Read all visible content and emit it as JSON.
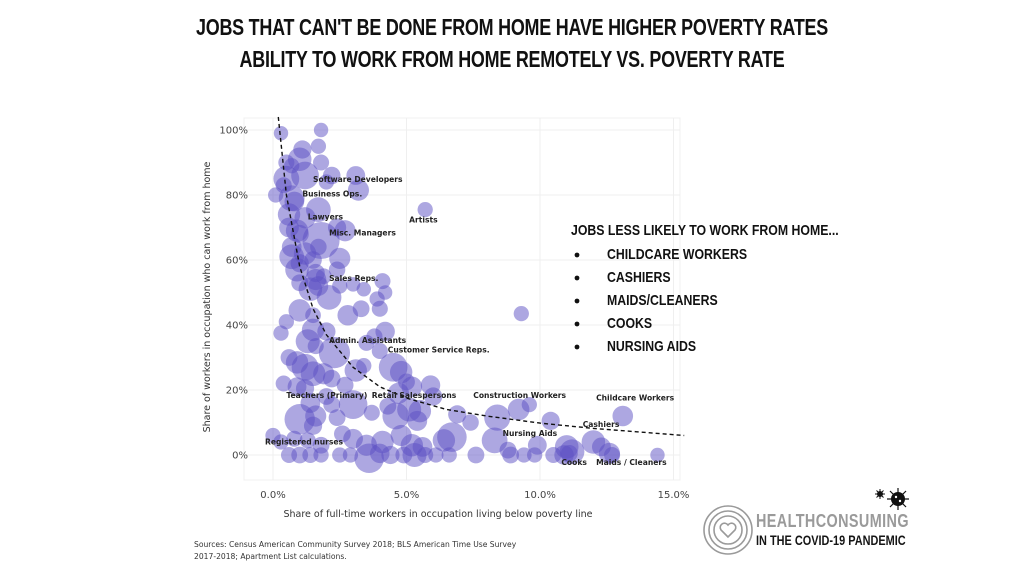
{
  "header": {
    "title": "Jobs that can't be done from home have higher poverty rates",
    "subtitle": "Ability to work from home remotely vs. poverty rate"
  },
  "chart_data": {
    "type": "scatter",
    "subtype": "bubble",
    "title": "Ability to work from home remotely vs. poverty rate",
    "xlabel": "Share of full-time workers in occupation living below poverty line",
    "ylabel": "Share of workers in occupation who can work from home",
    "xlim": [
      -1.0,
      15.4
    ],
    "ylim": [
      -6,
      104
    ],
    "x_ticks": [
      0,
      5,
      10,
      15
    ],
    "x_tick_labels": [
      "0.0%",
      "5.0%",
      "10.0%",
      "15.0%"
    ],
    "y_ticks": [
      0,
      20,
      40,
      60,
      80,
      100
    ],
    "y_tick_labels": [
      "0%",
      "20%",
      "40%",
      "60%",
      "80%",
      "100%"
    ],
    "grid": true,
    "bubble_color": "#5b4fc4",
    "trendline": {
      "style": "dashed",
      "color": "#111111",
      "shape": "inverse",
      "points": [
        [
          0.2,
          104
        ],
        [
          0.5,
          80
        ],
        [
          1.0,
          58
        ],
        [
          1.5,
          45
        ],
        [
          2.0,
          37
        ],
        [
          3.0,
          27
        ],
        [
          4.0,
          21
        ],
        [
          5.0,
          17.5
        ],
        [
          6.5,
          14
        ],
        [
          8.0,
          12
        ],
        [
          10.0,
          9.8
        ],
        [
          12.0,
          8.2
        ],
        [
          15.4,
          6
        ]
      ]
    },
    "labels": [
      {
        "text": "Software Developers",
        "x": 1.5,
        "y": 84
      },
      {
        "text": "Business Ops.",
        "x": 1.1,
        "y": 79.5
      },
      {
        "text": "Lawyers",
        "x": 1.3,
        "y": 72.5
      },
      {
        "text": "Misc. Managers",
        "x": 2.1,
        "y": 67.5
      },
      {
        "text": "Artists",
        "x": 5.1,
        "y": 71.5
      },
      {
        "text": "Sales Reps.",
        "x": 2.1,
        "y": 53.5
      },
      {
        "text": "Admin. Assistants",
        "x": 2.1,
        "y": 34.5
      },
      {
        "text": "Customer Service Reps.",
        "x": 4.3,
        "y": 31.5
      },
      {
        "text": "Teachers (Primary)",
        "x": 0.5,
        "y": 17.5
      },
      {
        "text": "Retail Salespersons",
        "x": 3.7,
        "y": 17.5
      },
      {
        "text": "Construction Workers",
        "x": 7.5,
        "y": 17.5
      },
      {
        "text": "Childcare Workers",
        "x": 12.1,
        "y": 16.8
      },
      {
        "text": "Cashiers",
        "x": 11.6,
        "y": 8.6
      },
      {
        "text": "Nursing Aids",
        "x": 8.6,
        "y": 5.8
      },
      {
        "text": "Registered nurses",
        "x": -0.3,
        "y": 3.3
      },
      {
        "text": "Cooks",
        "x": 10.8,
        "y": -3.0
      },
      {
        "text": "Maids / Cleaners",
        "x": 12.1,
        "y": -3.0
      }
    ],
    "points": [
      {
        "x": 0.3,
        "y": 99,
        "s": 1
      },
      {
        "x": 1.8,
        "y": 100,
        "s": 1
      },
      {
        "x": 1.1,
        "y": 94,
        "s": 2
      },
      {
        "x": 1.7,
        "y": 95,
        "s": 1.2
      },
      {
        "x": 0.5,
        "y": 90,
        "s": 1.4
      },
      {
        "x": 0.7,
        "y": 89,
        "s": 1.2
      },
      {
        "x": 1.0,
        "y": 91,
        "s": 4
      },
      {
        "x": 1.8,
        "y": 90,
        "s": 1.4
      },
      {
        "x": 0.5,
        "y": 85,
        "s": 5
      },
      {
        "x": 1.2,
        "y": 86,
        "s": 6
      },
      {
        "x": 2.2,
        "y": 86,
        "s": 1.8
      },
      {
        "x": 2.0,
        "y": 84,
        "s": 1.2
      },
      {
        "x": 3.1,
        "y": 86,
        "s": 2.2
      },
      {
        "x": 3.2,
        "y": 81.5,
        "s": 3
      },
      {
        "x": 0.1,
        "y": 80,
        "s": 1.2
      },
      {
        "x": 0.4,
        "y": 83,
        "s": 1.4
      },
      {
        "x": 0.7,
        "y": 79,
        "s": 5
      },
      {
        "x": 0.8,
        "y": 78,
        "s": 2.5
      },
      {
        "x": 1.7,
        "y": 75.5,
        "s": 4.5
      },
      {
        "x": 0.6,
        "y": 74,
        "s": 3.5
      },
      {
        "x": 1.2,
        "y": 73,
        "s": 3
      },
      {
        "x": 0.6,
        "y": 70,
        "s": 2.5
      },
      {
        "x": 0.9,
        "y": 69,
        "s": 3.5
      },
      {
        "x": 1.0,
        "y": 68,
        "s": 2
      },
      {
        "x": 1.8,
        "y": 66,
        "s": 12
      },
      {
        "x": 2.4,
        "y": 70,
        "s": 2
      },
      {
        "x": 2.7,
        "y": 69,
        "s": 3
      },
      {
        "x": 0.7,
        "y": 64,
        "s": 2.5
      },
      {
        "x": 1.7,
        "y": 64,
        "s": 1.5
      },
      {
        "x": 0.7,
        "y": 61,
        "s": 4.5
      },
      {
        "x": 1.2,
        "y": 62,
        "s": 3.5
      },
      {
        "x": 1.0,
        "y": 59,
        "s": 2
      },
      {
        "x": 1.5,
        "y": 60,
        "s": 1.8
      },
      {
        "x": 2.5,
        "y": 60.5,
        "s": 3
      },
      {
        "x": 2.4,
        "y": 57,
        "s": 1.5
      },
      {
        "x": 0.9,
        "y": 57,
        "s": 4
      },
      {
        "x": 1.6,
        "y": 56,
        "s": 2
      },
      {
        "x": 1.6,
        "y": 54,
        "s": 3
      },
      {
        "x": 1.9,
        "y": 55,
        "s": 1.3
      },
      {
        "x": 1.7,
        "y": 52,
        "s": 2.5
      },
      {
        "x": 1.0,
        "y": 53,
        "s": 1.6
      },
      {
        "x": 1.4,
        "y": 51,
        "s": 4
      },
      {
        "x": 2.1,
        "y": 48.5,
        "s": 4.5
      },
      {
        "x": 2.5,
        "y": 52,
        "s": 1.2
      },
      {
        "x": 3.0,
        "y": 52.5,
        "s": 1.0
      },
      {
        "x": 3.4,
        "y": 51,
        "s": 1.0
      },
      {
        "x": 4.1,
        "y": 53.5,
        "s": 1.4
      },
      {
        "x": 4.2,
        "y": 50,
        "s": 1.0
      },
      {
        "x": 3.9,
        "y": 48,
        "s": 1.2
      },
      {
        "x": 4.0,
        "y": 45,
        "s": 1.4
      },
      {
        "x": 1.0,
        "y": 44.5,
        "s": 3.5
      },
      {
        "x": 1.5,
        "y": 43,
        "s": 1.3
      },
      {
        "x": 2.8,
        "y": 43,
        "s": 2.8
      },
      {
        "x": 3.3,
        "y": 45,
        "s": 1.6
      },
      {
        "x": 0.5,
        "y": 41,
        "s": 1.2
      },
      {
        "x": 1.5,
        "y": 38.5,
        "s": 3.5
      },
      {
        "x": 2.0,
        "y": 38,
        "s": 2
      },
      {
        "x": 1.3,
        "y": 35,
        "s": 4.2
      },
      {
        "x": 0.3,
        "y": 37.5,
        "s": 1.2
      },
      {
        "x": 1.6,
        "y": 33.5,
        "s": 1.4
      },
      {
        "x": 2.3,
        "y": 31.5,
        "s": 8
      },
      {
        "x": 3.5,
        "y": 34.5,
        "s": 1.4
      },
      {
        "x": 3.8,
        "y": 36.5,
        "s": 1.4
      },
      {
        "x": 4.2,
        "y": 38,
        "s": 2.4
      },
      {
        "x": 4.0,
        "y": 32,
        "s": 1.4
      },
      {
        "x": 0.6,
        "y": 30,
        "s": 1.6
      },
      {
        "x": 0.9,
        "y": 28.5,
        "s": 3.5
      },
      {
        "x": 1.2,
        "y": 27,
        "s": 5.5
      },
      {
        "x": 1.5,
        "y": 25,
        "s": 4.5
      },
      {
        "x": 1.9,
        "y": 25,
        "s": 3
      },
      {
        "x": 2.2,
        "y": 23.5,
        "s": 1.8
      },
      {
        "x": 3.1,
        "y": 26,
        "s": 3.5
      },
      {
        "x": 3.4,
        "y": 27.5,
        "s": 1.2
      },
      {
        "x": 4.5,
        "y": 27,
        "s": 6.5
      },
      {
        "x": 4.8,
        "y": 25.5,
        "s": 3.5
      },
      {
        "x": 5.0,
        "y": 22.5,
        "s": 1.6
      },
      {
        "x": 0.9,
        "y": 21,
        "s": 2.2
      },
      {
        "x": 1.2,
        "y": 20.5,
        "s": 2
      },
      {
        "x": 0.4,
        "y": 22,
        "s": 1.4
      },
      {
        "x": 2.7,
        "y": 21.5,
        "s": 1.6
      },
      {
        "x": 5.2,
        "y": 21,
        "s": 2.8
      },
      {
        "x": 5.9,
        "y": 21.5,
        "s": 2.4
      },
      {
        "x": 6.0,
        "y": 18,
        "s": 2
      },
      {
        "x": 4.7,
        "y": 19,
        "s": 3
      },
      {
        "x": 1.4,
        "y": 16,
        "s": 2.5
      },
      {
        "x": 2.0,
        "y": 18,
        "s": 1.6
      },
      {
        "x": 2.2,
        "y": 15.5,
        "s": 1.6
      },
      {
        "x": 3.0,
        "y": 15.5,
        "s": 6.5
      },
      {
        "x": 4.3,
        "y": 15,
        "s": 1.6
      },
      {
        "x": 5.1,
        "y": 14,
        "s": 4.2
      },
      {
        "x": 5.5,
        "y": 13.5,
        "s": 3.5
      },
      {
        "x": 1.0,
        "y": 11,
        "s": 7.5
      },
      {
        "x": 1.6,
        "y": 12,
        "s": 3
      },
      {
        "x": 1.5,
        "y": 9,
        "s": 2
      },
      {
        "x": 2.4,
        "y": 11.5,
        "s": 1.6
      },
      {
        "x": 3.7,
        "y": 13,
        "s": 1.4
      },
      {
        "x": 4.6,
        "y": 12,
        "s": 5.5
      },
      {
        "x": 5.4,
        "y": 10.5,
        "s": 2.6
      },
      {
        "x": 6.9,
        "y": 12.5,
        "s": 2
      },
      {
        "x": 7.4,
        "y": 10,
        "s": 1.5
      },
      {
        "x": 8.4,
        "y": 11.5,
        "s": 5.2
      },
      {
        "x": 9.2,
        "y": 14,
        "s": 3.2
      },
      {
        "x": 9.6,
        "y": 15.5,
        "s": 1.2
      },
      {
        "x": 10.4,
        "y": 10.5,
        "s": 2
      },
      {
        "x": 13.1,
        "y": 12,
        "s": 2.8
      },
      {
        "x": 0.0,
        "y": 6,
        "s": 1.2
      },
      {
        "x": 0.3,
        "y": 4,
        "s": 1.2
      },
      {
        "x": 0.8,
        "y": 5,
        "s": 1.4
      },
      {
        "x": 1.3,
        "y": 4.5,
        "s": 1.4
      },
      {
        "x": 1.8,
        "y": 3,
        "s": 1.6
      },
      {
        "x": 2.6,
        "y": 6.5,
        "s": 1.6
      },
      {
        "x": 3.0,
        "y": 5,
        "s": 2.5
      },
      {
        "x": 3.5,
        "y": 3,
        "s": 3
      },
      {
        "x": 4.1,
        "y": 4,
        "s": 3.5
      },
      {
        "x": 4.8,
        "y": 6,
        "s": 3
      },
      {
        "x": 5.2,
        "y": 3,
        "s": 3.5
      },
      {
        "x": 5.6,
        "y": 2.5,
        "s": 2.5
      },
      {
        "x": 6.4,
        "y": 4.5,
        "s": 3.5
      },
      {
        "x": 6.7,
        "y": 5.5,
        "s": 7
      },
      {
        "x": 8.3,
        "y": 4.5,
        "s": 5
      },
      {
        "x": 8.8,
        "y": 1.5,
        "s": 1.6
      },
      {
        "x": 9.9,
        "y": 3,
        "s": 2.2
      },
      {
        "x": 11.0,
        "y": 2.5,
        "s": 4
      },
      {
        "x": 11.2,
        "y": 1,
        "s": 4.5
      },
      {
        "x": 12.0,
        "y": 4,
        "s": 4
      },
      {
        "x": 12.3,
        "y": 2.5,
        "s": 2.2
      },
      {
        "x": 12.6,
        "y": 0.5,
        "s": 3
      },
      {
        "x": 14.4,
        "y": 0,
        "s": 1
      },
      {
        "x": 0.6,
        "y": 0,
        "s": 1.4
      },
      {
        "x": 1.0,
        "y": 0,
        "s": 1.6
      },
      {
        "x": 1.4,
        "y": 0,
        "s": 1.4
      },
      {
        "x": 1.8,
        "y": 0,
        "s": 1.2
      },
      {
        "x": 2.5,
        "y": 0,
        "s": 1.2
      },
      {
        "x": 2.9,
        "y": 0,
        "s": 1.2
      },
      {
        "x": 3.6,
        "y": -1,
        "s": 7
      },
      {
        "x": 4.0,
        "y": 0.5,
        "s": 2.4
      },
      {
        "x": 4.4,
        "y": 0,
        "s": 2
      },
      {
        "x": 4.9,
        "y": 0,
        "s": 1.6
      },
      {
        "x": 5.3,
        "y": 0,
        "s": 4.2
      },
      {
        "x": 5.7,
        "y": 0,
        "s": 1.4
      },
      {
        "x": 6.1,
        "y": 0,
        "s": 1.2
      },
      {
        "x": 6.6,
        "y": 0,
        "s": 1.2
      },
      {
        "x": 7.6,
        "y": 0,
        "s": 1.6
      },
      {
        "x": 8.9,
        "y": 0,
        "s": 1.6
      },
      {
        "x": 9.4,
        "y": 0,
        "s": 1.2
      },
      {
        "x": 9.8,
        "y": 0,
        "s": 1.2
      },
      {
        "x": 10.5,
        "y": 0,
        "s": 1.4
      },
      {
        "x": 10.9,
        "y": 0,
        "s": 2.4
      },
      {
        "x": 11.1,
        "y": 0.5,
        "s": 1.6
      },
      {
        "x": 12.7,
        "y": 0,
        "s": 1.4
      },
      {
        "x": 9.3,
        "y": 43.5,
        "s": 1.2
      },
      {
        "x": 5.7,
        "y": 75.5,
        "s": 1.2
      }
    ]
  },
  "callout": {
    "heading": "Jobs less likely to work from home...",
    "items": [
      "Childcare workers",
      "Cashiers",
      "Maids/Cleaners",
      "Cooks",
      "Nursing aids"
    ]
  },
  "footer": {
    "sources": "Sources: Census American Community Survey 2018; BLS American Time Use Survey 2017-2018; Apartment List calculations."
  },
  "logo": {
    "name": "HEALTHCONSUMING",
    "tagline": "IN THE COVID-19 PANDEMIC",
    "icons": [
      "heart-rings-icon",
      "virus-icon"
    ]
  }
}
